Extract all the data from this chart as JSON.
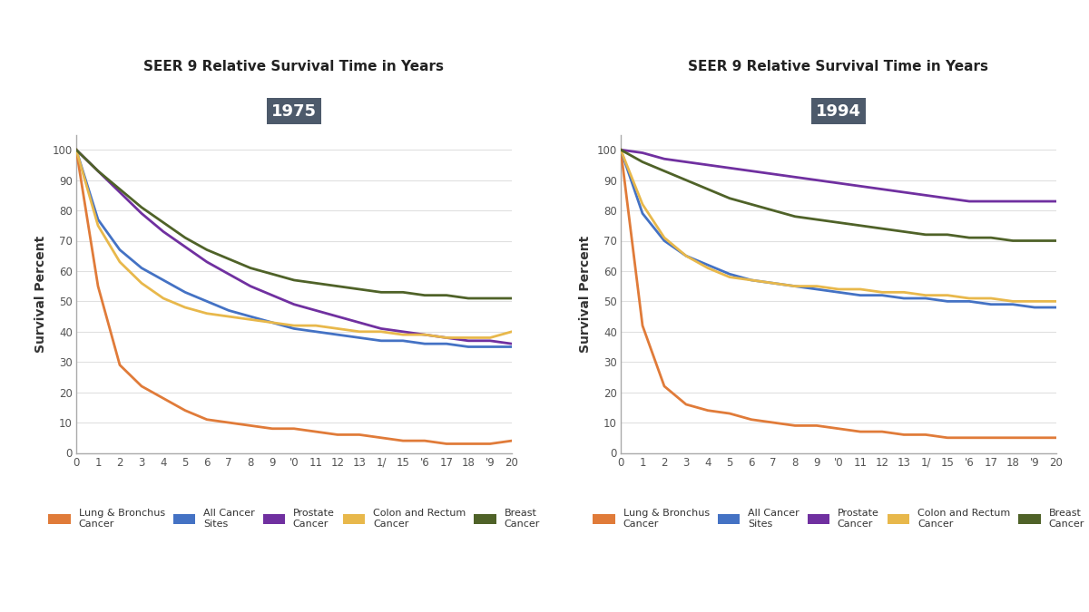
{
  "title": "SEER 9 Relative Survival Time in Years",
  "year_labels": [
    "1975",
    "1994"
  ],
  "year_label_bg": "#4d5a6b",
  "year_label_fg": "#ffffff",
  "ylabel": "Survival Percent",
  "xlim": [
    0,
    20
  ],
  "ylim": [
    0,
    105
  ],
  "yticks": [
    0,
    10,
    20,
    30,
    40,
    50,
    60,
    70,
    80,
    90,
    100
  ],
  "ytick_labels": [
    "0",
    "10",
    "20",
    "30",
    "40",
    "50",
    "60",
    "70",
    "80",
    "90",
    "100"
  ],
  "xticks": [
    0,
    1,
    2,
    3,
    4,
    5,
    6,
    7,
    8,
    9,
    10,
    11,
    12,
    13,
    14,
    15,
    16,
    17,
    18,
    19,
    20
  ],
  "xtick_labels": [
    "0",
    "1",
    "2",
    "3",
    "4",
    "5",
    "6",
    "7",
    "8",
    "9",
    "'0",
    "11",
    "12",
    "13",
    "1/",
    "15",
    "'6",
    "17",
    "18",
    "'9",
    "20"
  ],
  "background_color": "#ffffff",
  "grid_color": "#e0e0e0",
  "series": [
    {
      "label": "Lung & Bronchus\nCancer",
      "color": "#e07b39"
    },
    {
      "label": "All Cancer\nSites",
      "color": "#4472c4"
    },
    {
      "label": "Prostate\nCancer",
      "color": "#7030a0"
    },
    {
      "label": "Colon and Rectum\nCancer",
      "color": "#e8b84b"
    },
    {
      "label": "Breast\nCancer",
      "color": "#4f6228"
    }
  ],
  "data_1975": {
    "years": [
      0,
      1,
      2,
      3,
      4,
      5,
      6,
      7,
      8,
      9,
      10,
      11,
      12,
      13,
      14,
      15,
      16,
      17,
      18,
      19,
      20
    ],
    "lung": [
      100,
      55,
      29,
      22,
      18,
      14,
      11,
      10,
      9,
      8,
      8,
      7,
      6,
      6,
      5,
      4,
      4,
      3,
      3,
      3,
      4
    ],
    "all": [
      100,
      77,
      67,
      61,
      57,
      53,
      50,
      47,
      45,
      43,
      41,
      40,
      39,
      38,
      37,
      37,
      36,
      36,
      35,
      35,
      35
    ],
    "prostate": [
      100,
      93,
      86,
      79,
      73,
      68,
      63,
      59,
      55,
      52,
      49,
      47,
      45,
      43,
      41,
      40,
      39,
      38,
      37,
      37,
      36
    ],
    "colon": [
      100,
      75,
      63,
      56,
      51,
      48,
      46,
      45,
      44,
      43,
      42,
      42,
      41,
      40,
      40,
      39,
      39,
      38,
      38,
      38,
      40
    ],
    "breast": [
      100,
      93,
      87,
      81,
      76,
      71,
      67,
      64,
      61,
      59,
      57,
      56,
      55,
      54,
      53,
      53,
      52,
      52,
      51,
      51,
      51
    ]
  },
  "data_1994": {
    "years": [
      0,
      1,
      2,
      3,
      4,
      5,
      6,
      7,
      8,
      9,
      10,
      11,
      12,
      13,
      14,
      15,
      16,
      17,
      18,
      19,
      20
    ],
    "lung": [
      100,
      42,
      22,
      16,
      14,
      13,
      11,
      10,
      9,
      9,
      8,
      7,
      7,
      6,
      6,
      5,
      5,
      5,
      5,
      5,
      5
    ],
    "all": [
      100,
      79,
      70,
      65,
      62,
      59,
      57,
      56,
      55,
      54,
      53,
      52,
      52,
      51,
      51,
      50,
      50,
      49,
      49,
      48,
      48
    ],
    "prostate": [
      100,
      99,
      97,
      96,
      95,
      94,
      93,
      92,
      91,
      90,
      89,
      88,
      87,
      86,
      85,
      84,
      83,
      83,
      83,
      83,
      83
    ],
    "colon": [
      100,
      82,
      71,
      65,
      61,
      58,
      57,
      56,
      55,
      55,
      54,
      54,
      53,
      53,
      52,
      52,
      51,
      51,
      50,
      50,
      50
    ],
    "breast": [
      100,
      96,
      93,
      90,
      87,
      84,
      82,
      80,
      78,
      77,
      76,
      75,
      74,
      73,
      72,
      72,
      71,
      71,
      70,
      70,
      70
    ]
  }
}
